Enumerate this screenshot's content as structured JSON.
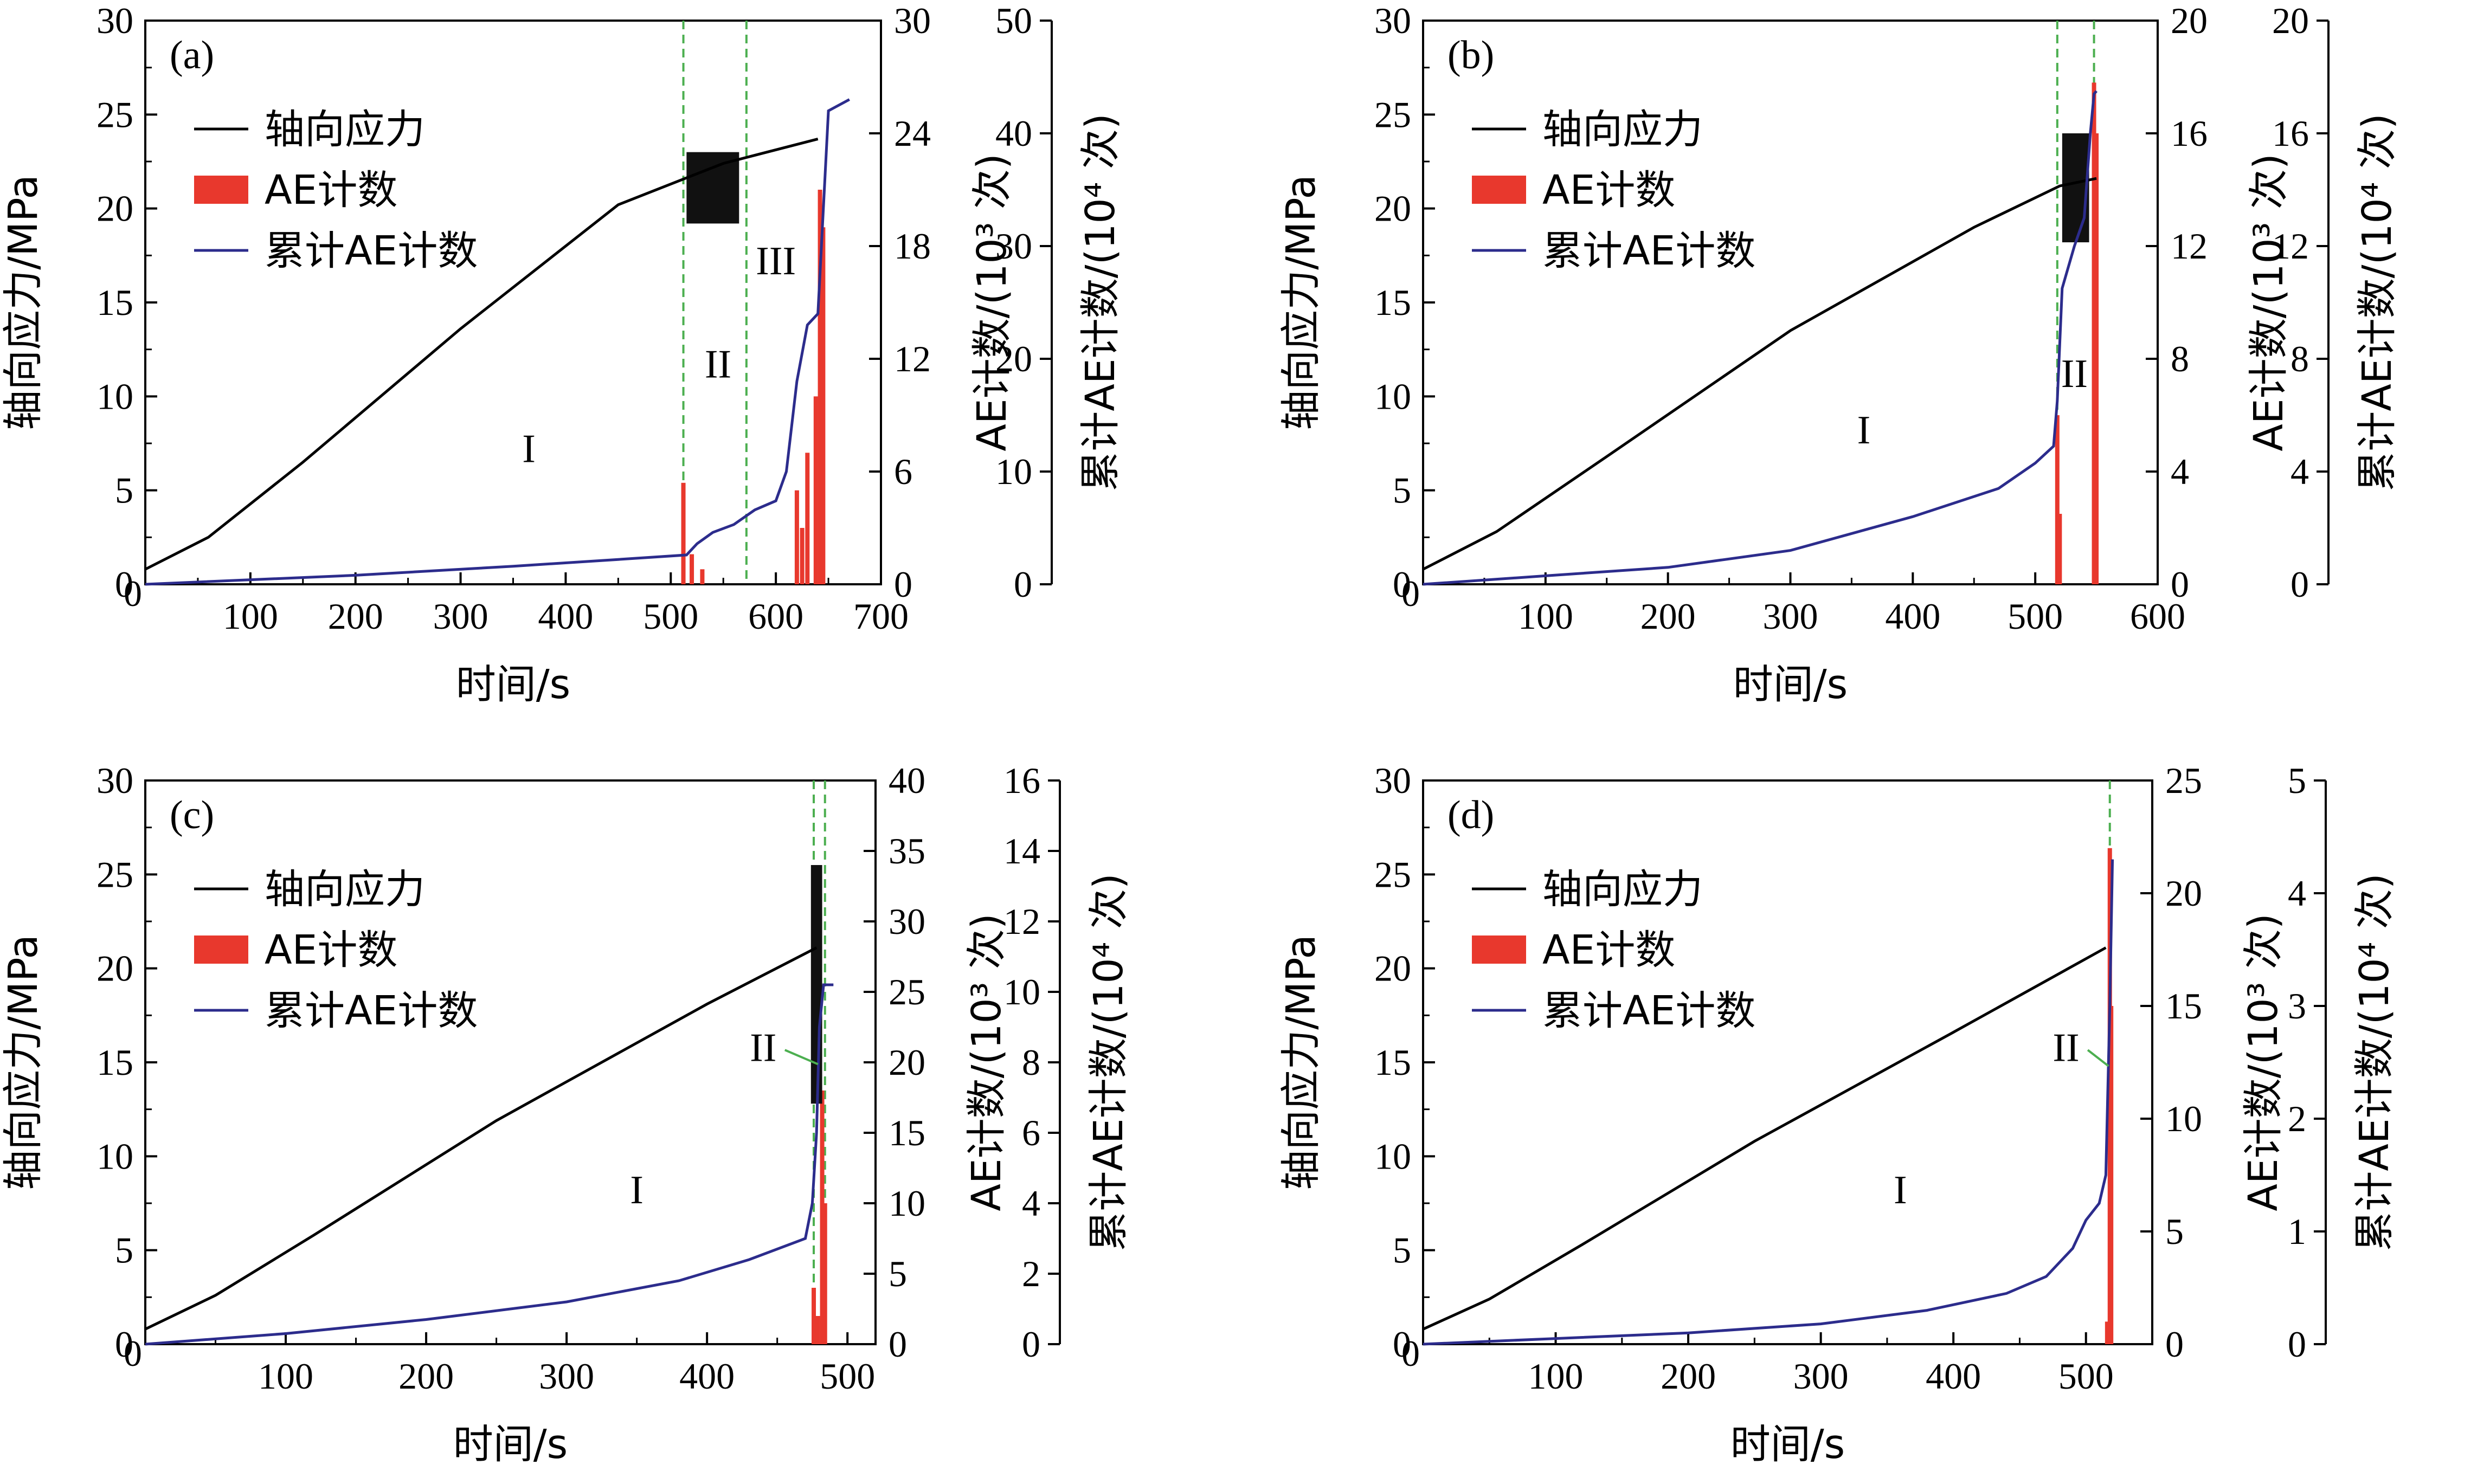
{
  "figure": {
    "legend": {
      "stress": "轴向应力",
      "ae": "AE计数",
      "cum": "累计AE计数"
    },
    "xlabel": "时间/s",
    "ylabel_left": "轴向应力/MPa",
    "ylabel_ae": "AE计数/(10³ 次)",
    "ylabel_cum": "累计AE计数/(10⁴ 次)",
    "colors": {
      "stress": "#000000",
      "ae": "#e8382d",
      "cum": "#2c2c8c",
      "guide": "#4caf50"
    }
  },
  "chart_data": [
    {
      "type": "line",
      "panel": "(a)",
      "xlim": [
        0,
        700
      ],
      "xticks": [
        "100",
        "200",
        "300",
        "400",
        "500",
        "600",
        "700"
      ],
      "ylim_stress": [
        0,
        30
      ],
      "yticks_stress": [
        "0",
        "5",
        "10",
        "15",
        "20",
        "25",
        "30"
      ],
      "ylim_ae": [
        0,
        30
      ],
      "yticks_ae": [
        "0",
        "6",
        "12",
        "18",
        "24",
        "30"
      ],
      "ylim_cum": [
        0,
        50
      ],
      "yticks_cum": [
        "0",
        "10",
        "20",
        "30",
        "40",
        "50"
      ],
      "stress": {
        "x": [
          0,
          60,
          150,
          300,
          450,
          550,
          640
        ],
        "y": [
          0.8,
          2.5,
          6.5,
          13.6,
          20.2,
          22.4,
          23.7
        ]
      },
      "cumulative": {
        "x": [
          0,
          200,
          350,
          450,
          515,
          525,
          540,
          560,
          580,
          600,
          610,
          620,
          630,
          640,
          645,
          650,
          670
        ],
        "y": [
          0,
          0.8,
          1.6,
          2.2,
          2.6,
          3.6,
          4.6,
          5.3,
          6.6,
          7.4,
          10,
          18,
          23,
          24,
          33,
          42,
          43
        ]
      },
      "ae_spikes": [
        {
          "x": 512,
          "v": 5.4
        },
        {
          "x": 520,
          "v": 1.6
        },
        {
          "x": 530,
          "v": 0.8
        },
        {
          "x": 620,
          "v": 5
        },
        {
          "x": 625,
          "v": 3
        },
        {
          "x": 630,
          "v": 7
        },
        {
          "x": 638,
          "v": 10
        },
        {
          "x": 642,
          "v": 21
        },
        {
          "x": 645,
          "v": 19
        }
      ],
      "phase_lines": [
        512,
        572
      ],
      "phases": [
        {
          "label": "I",
          "x": 365,
          "y": 6.5
        },
        {
          "label": "II",
          "x": 545,
          "y": 11
        },
        {
          "label": "III",
          "x": 600,
          "y": 16.5
        }
      ],
      "ae_block": {
        "x0": 515,
        "x1": 565,
        "y0": 19.2,
        "y1": 23
      }
    },
    {
      "type": "line",
      "panel": "(b)",
      "xlim": [
        0,
        600
      ],
      "xticks": [
        "100",
        "200",
        "300",
        "400",
        "500",
        "600"
      ],
      "ylim_stress": [
        0,
        30
      ],
      "yticks_stress": [
        "0",
        "5",
        "10",
        "15",
        "20",
        "25",
        "30"
      ],
      "ylim_ae": [
        0,
        20
      ],
      "yticks_ae": [
        "0",
        "4",
        "8",
        "12",
        "16",
        "20"
      ],
      "ylim_cum": [
        0,
        20
      ],
      "yticks_cum": [
        "0",
        "4",
        "8",
        "12",
        "16",
        "20"
      ],
      "stress": {
        "x": [
          0,
          60,
          150,
          300,
          450,
          520,
          550
        ],
        "y": [
          0.8,
          2.8,
          6.8,
          13.5,
          19.0,
          21.2,
          21.6
        ]
      },
      "cumulative": {
        "x": [
          0,
          100,
          200,
          300,
          400,
          470,
          500,
          515,
          518,
          522,
          532,
          540,
          545,
          548,
          550
        ],
        "y": [
          0,
          0.3,
          0.6,
          1.2,
          2.4,
          3.4,
          4.3,
          4.9,
          6.5,
          10.5,
          12,
          13,
          16,
          17.4,
          17.5
        ]
      },
      "ae_spikes": [
        {
          "x": 518,
          "v": 6
        },
        {
          "x": 520,
          "v": 2.5
        },
        {
          "x": 548,
          "v": 17.8
        },
        {
          "x": 550,
          "v": 16
        }
      ],
      "phase_lines": [
        518,
        548
      ],
      "phases": [
        {
          "label": "I",
          "x": 360,
          "y": 7.5
        },
        {
          "label": "II",
          "x": 532,
          "y": 10.5
        }
      ],
      "ae_block": {
        "x0": 522,
        "x1": 544,
        "y0": 18.2,
        "y1": 24
      }
    },
    {
      "type": "line",
      "panel": "(c)",
      "xlim": [
        0,
        520
      ],
      "xticks": [
        "100",
        "200",
        "300",
        "400",
        "500"
      ],
      "ylim_stress": [
        0,
        30
      ],
      "yticks_stress": [
        "0",
        "5",
        "10",
        "15",
        "20",
        "25",
        "30"
      ],
      "ylim_ae": [
        0,
        40
      ],
      "yticks_ae": [
        "0",
        "5",
        "10",
        "15",
        "20",
        "25",
        "30",
        "35",
        "40"
      ],
      "ylim_cum": [
        0,
        16
      ],
      "yticks_cum": [
        "0",
        "2",
        "4",
        "6",
        "8",
        "10",
        "12",
        "14",
        "16"
      ],
      "stress": {
        "x": [
          0,
          50,
          120,
          250,
          400,
          478
        ],
        "y": [
          0.8,
          2.6,
          5.8,
          11.9,
          18.1,
          21.1
        ]
      },
      "cumulative": {
        "x": [
          0,
          100,
          200,
          300,
          380,
          430,
          470,
          475,
          478,
          480,
          483,
          486,
          490
        ],
        "y": [
          0,
          0.3,
          0.7,
          1.2,
          1.8,
          2.4,
          3.0,
          4.0,
          6.0,
          9.0,
          10.2,
          10.2,
          10.2
        ]
      },
      "ae_spikes": [
        {
          "x": 476,
          "v": 4
        },
        {
          "x": 479,
          "v": 2
        },
        {
          "x": 482,
          "v": 18
        },
        {
          "x": 484,
          "v": 10
        }
      ],
      "phase_lines": [
        476,
        484
      ],
      "phases": [
        {
          "label": "I",
          "x": 350,
          "y": 7.5
        }
      ],
      "phase_callout": {
        "label": "II",
        "x": 440,
        "y": 15.8,
        "target_x": 479,
        "target_y": 14.9
      },
      "ae_block": {
        "x0": 474,
        "x1": 482,
        "y0": 12.8,
        "y1": 25.5
      }
    },
    {
      "type": "line",
      "panel": "(d)",
      "xlim": [
        0,
        550
      ],
      "xticks": [
        "100",
        "200",
        "300",
        "400",
        "500"
      ],
      "ylim_stress": [
        0,
        30
      ],
      "yticks_stress": [
        "0",
        "5",
        "10",
        "15",
        "20",
        "25",
        "30"
      ],
      "ylim_ae": [
        0,
        25
      ],
      "yticks_ae": [
        "0",
        "5",
        "10",
        "15",
        "20",
        "25"
      ],
      "ylim_cum": [
        0,
        5
      ],
      "yticks_cum": [
        "0",
        "1",
        "2",
        "3",
        "4",
        "5"
      ],
      "stress": {
        "x": [
          0,
          50,
          120,
          250,
          400,
          515
        ],
        "y": [
          0.8,
          2.4,
          5.3,
          10.8,
          16.6,
          21.1
        ]
      },
      "cumulative": {
        "x": [
          0,
          100,
          200,
          300,
          380,
          440,
          470,
          490,
          500,
          510,
          515,
          518,
          520
        ],
        "y": [
          0,
          0.05,
          0.1,
          0.18,
          0.3,
          0.45,
          0.6,
          0.85,
          1.1,
          1.25,
          1.5,
          3.0,
          4.3
        ]
      },
      "ae_spikes": [
        {
          "x": 516,
          "v": 1
        },
        {
          "x": 518,
          "v": 22
        },
        {
          "x": 519,
          "v": 15
        }
      ],
      "phase_lines": [
        518
      ],
      "phases": [
        {
          "label": "I",
          "x": 360,
          "y": 7.5
        }
      ],
      "phase_callout": {
        "label": "II",
        "x": 485,
        "y": 15.8,
        "target_x": 517,
        "target_y": 14.8
      },
      "ae_block": null
    }
  ]
}
